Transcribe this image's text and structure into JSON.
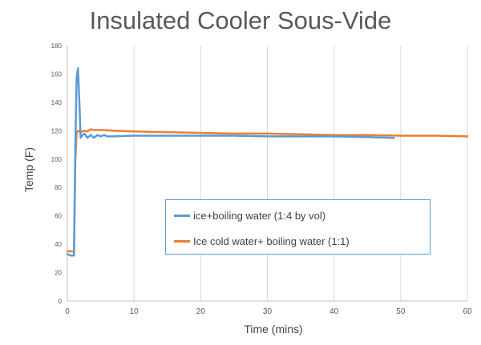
{
  "chart_data": {
    "type": "line",
    "title": "Insulated Cooler Sous-Vide",
    "xlabel": "Time (mins)",
    "ylabel": "Temp  (F)",
    "xlim": [
      0,
      60
    ],
    "ylim": [
      0,
      180
    ],
    "xticks": [
      "0",
      "10",
      "20",
      "30",
      "40",
      "50",
      "60"
    ],
    "yticks": [
      "0",
      "20",
      "40",
      "60",
      "80",
      "100",
      "120",
      "140",
      "160",
      "180"
    ],
    "grid": "vertical",
    "legend_position": "center-right",
    "series": [
      {
        "name": "ice+boiling water (1:4 by vol)",
        "color": "#5b9bd5",
        "x": [
          0,
          0.5,
          1,
          1.2,
          1.4,
          1.6,
          1.8,
          2.0,
          2.3,
          2.6,
          3.0,
          3.5,
          4.0,
          4.5,
          5.0,
          5.5,
          6.0,
          7,
          10,
          15,
          20,
          25,
          30,
          35,
          40,
          45,
          49
        ],
        "y": [
          33,
          32,
          32,
          110,
          158,
          164,
          140,
          115,
          117,
          118,
          115,
          117,
          115,
          117,
          116,
          117,
          116,
          116,
          116.5,
          116.5,
          116.5,
          116.5,
          116,
          116,
          116,
          115.5,
          115
        ]
      },
      {
        "name": "Ice cold water+ boiling water (1:1)",
        "color": "#ed7d31",
        "x": [
          0,
          0.5,
          1.0,
          1.2,
          1.4,
          1.6,
          2.0,
          2.5,
          3.0,
          3.5,
          4,
          5,
          7,
          10,
          15,
          20,
          25,
          30,
          35,
          40,
          45,
          50,
          55,
          60
        ],
        "y": [
          35,
          35,
          35,
          100,
          119,
          120,
          119,
          120,
          119.5,
          121,
          120.5,
          120.5,
          120,
          119.5,
          119,
          118.5,
          118,
          118,
          117.5,
          117,
          117,
          116.5,
          116.5,
          116
        ]
      }
    ]
  }
}
